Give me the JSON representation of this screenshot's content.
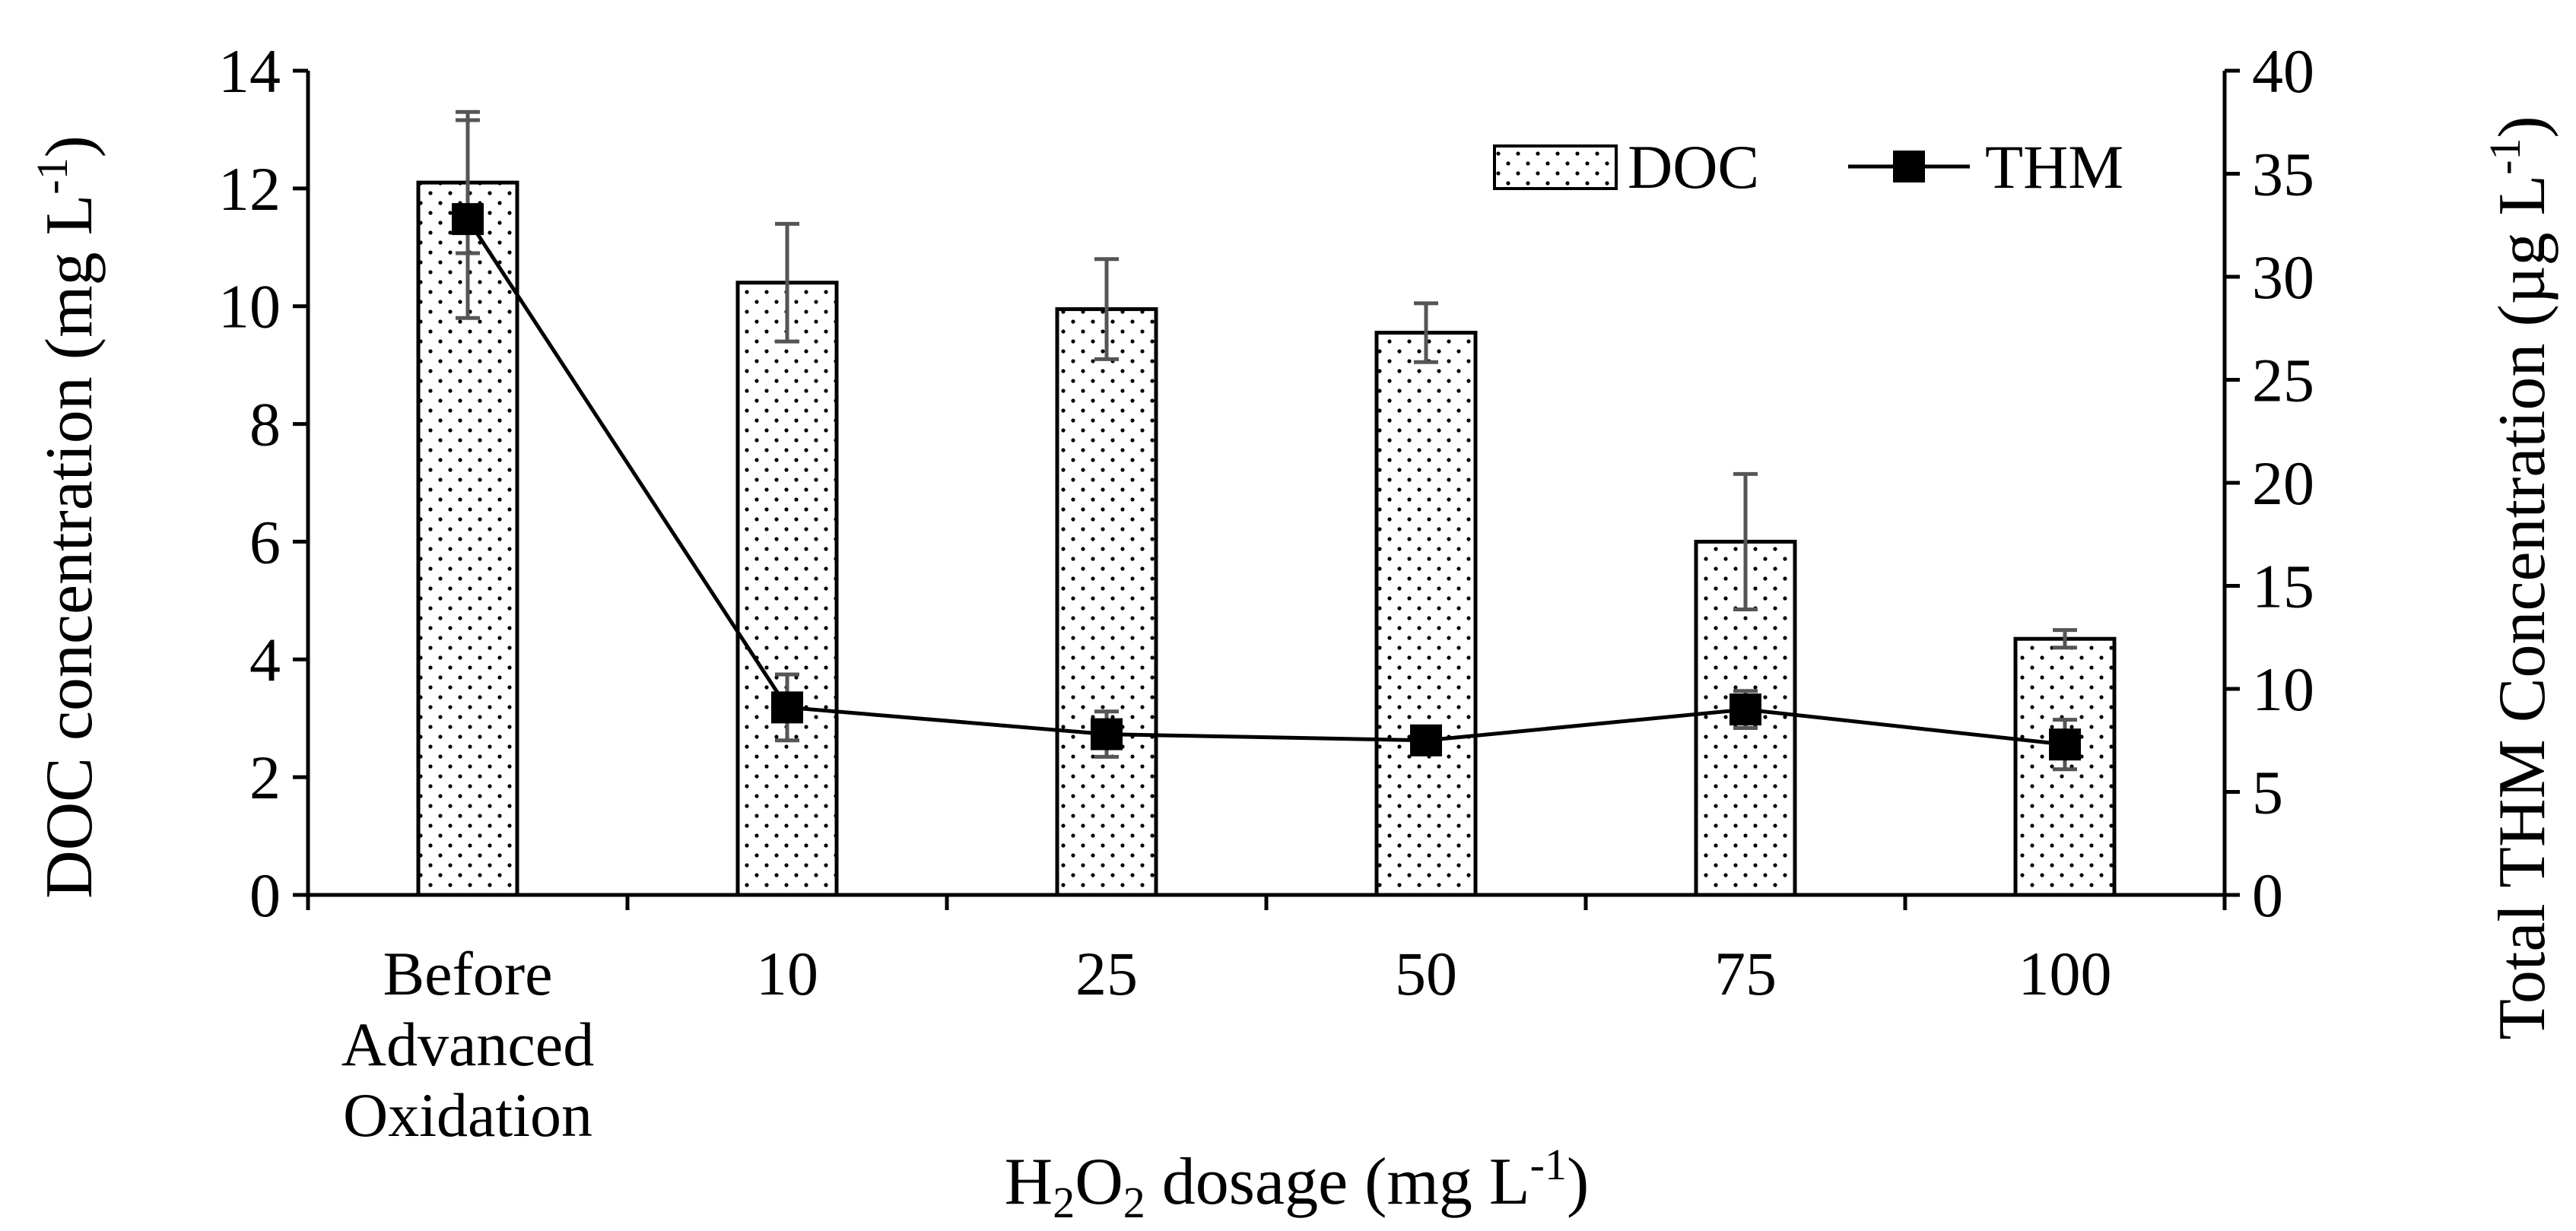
{
  "chart_data": {
    "type": "bar+line",
    "x_axis": {
      "title": "H₂O₂ dosage (mg L⁻¹)",
      "title_parts": {
        "a": "H",
        "sub1": "2",
        "b": "O",
        "sub2": "2",
        "c": " dosage (mg L",
        "sup": "-1",
        "d": ")"
      },
      "categories": [
        {
          "lines": [
            "Before",
            "Advanced",
            "Oxidation"
          ]
        },
        {
          "lines": [
            "10"
          ]
        },
        {
          "lines": [
            "25"
          ]
        },
        {
          "lines": [
            "50"
          ]
        },
        {
          "lines": [
            "75"
          ]
        },
        {
          "lines": [
            "100"
          ]
        }
      ]
    },
    "y_left": {
      "title_parts": {
        "a": "DOC concentration (mg L",
        "sup": "-1",
        "b": ")"
      },
      "range": [
        0,
        14
      ],
      "ticks": [
        0,
        2,
        4,
        6,
        8,
        10,
        12,
        14
      ]
    },
    "y_right": {
      "title_parts": {
        "a": "Total THM Concentration (µg L",
        "sup": "-1",
        "b": ")"
      },
      "range": [
        0,
        40
      ],
      "ticks": [
        0,
        5,
        10,
        15,
        20,
        25,
        30,
        35,
        40
      ]
    },
    "series": [
      {
        "name": "DOC",
        "type": "bar",
        "axis": "left",
        "pattern": "dotted",
        "values": [
          12.1,
          10.4,
          9.95,
          9.55,
          6.0,
          4.35
        ],
        "error": [
          1.2,
          1.0,
          0.85,
          0.5,
          1.15,
          0.15
        ]
      },
      {
        "name": "THM",
        "type": "line",
        "axis": "right",
        "marker": "square",
        "values": [
          32.8,
          9.1,
          7.8,
          7.5,
          9.0,
          7.3
        ],
        "error": [
          4.8,
          1.6,
          1.1,
          0.3,
          0.9,
          1.2
        ]
      }
    ],
    "legend": {
      "position": "top-right",
      "entries": [
        "DOC",
        "THM"
      ]
    },
    "grid": false
  }
}
